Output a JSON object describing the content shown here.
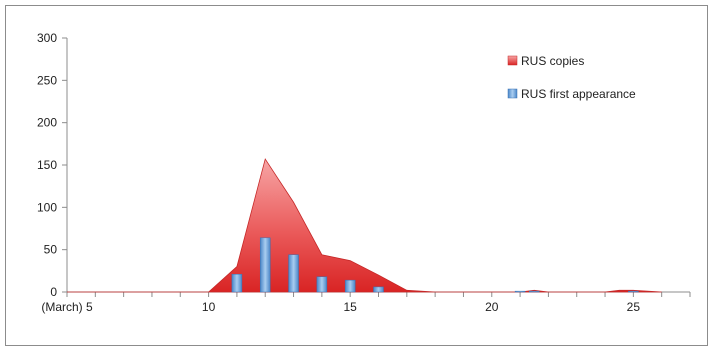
{
  "chart_data": {
    "type": "area",
    "title": "",
    "xlabel": "",
    "ylabel": "",
    "xlim": [
      5,
      27
    ],
    "ylim": [
      0,
      300
    ],
    "x_ticks": [
      {
        "x": 5,
        "label": "(March) 5"
      },
      {
        "x": 10,
        "label": "10"
      },
      {
        "x": 15,
        "label": "15"
      },
      {
        "x": 20,
        "label": "20"
      },
      {
        "x": 25,
        "label": "25"
      }
    ],
    "y_ticks": [
      0,
      50,
      100,
      150,
      200,
      250,
      300
    ],
    "legend_position": "top-right",
    "series": [
      {
        "name": "RUS copies",
        "kind": "area",
        "color": "#e03c3c",
        "points": [
          [
            5,
            0
          ],
          [
            6,
            0
          ],
          [
            7,
            0
          ],
          [
            8,
            0
          ],
          [
            9,
            0
          ],
          [
            10,
            0
          ],
          [
            11,
            30
          ],
          [
            12,
            157
          ],
          [
            13,
            106
          ],
          [
            14,
            44
          ],
          [
            15,
            37
          ],
          [
            16,
            20
          ],
          [
            17,
            2
          ],
          [
            18,
            0
          ],
          [
            19,
            0
          ],
          [
            20,
            0
          ],
          [
            21,
            0
          ],
          [
            21.5,
            2
          ],
          [
            22,
            0
          ],
          [
            23,
            0
          ],
          [
            24,
            0
          ],
          [
            24.5,
            2
          ],
          [
            25,
            2
          ],
          [
            25.5,
            1
          ],
          [
            26,
            0
          ]
        ]
      },
      {
        "name": "RUS first appearance",
        "kind": "bar",
        "color": "#5b9bd5",
        "points": [
          [
            11,
            21
          ],
          [
            12,
            64
          ],
          [
            13,
            44
          ],
          [
            14,
            18
          ],
          [
            15,
            14
          ],
          [
            16,
            6
          ],
          [
            21,
            1
          ],
          [
            21.5,
            1
          ],
          [
            25,
            1
          ]
        ]
      }
    ]
  }
}
